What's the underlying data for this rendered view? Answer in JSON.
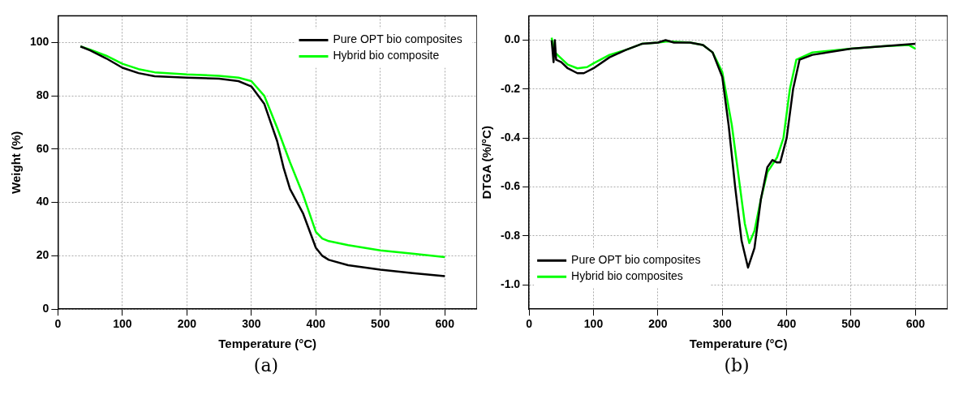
{
  "chart_data": [
    {
      "type": "line",
      "xlabel": "Temperature (°C)",
      "ylabel": "Weight (%)",
      "xlim": [
        0,
        650
      ],
      "ylim": [
        0,
        110
      ],
      "xticks": [
        0,
        100,
        200,
        300,
        400,
        500,
        600
      ],
      "yticks": [
        0,
        20,
        40,
        60,
        80,
        100
      ],
      "grid": true,
      "legend": "top right",
      "annotations": [
        "(a)"
      ],
      "series": [
        {
          "name": "Pure OPT bio composites",
          "color": "#000000",
          "x": [
            35,
            50,
            75,
            100,
            125,
            150,
            200,
            250,
            280,
            300,
            320,
            340,
            350,
            360,
            380,
            400,
            410,
            420,
            450,
            500,
            550,
            600
          ],
          "values": [
            98.5,
            97,
            94,
            90.5,
            88.5,
            87.3,
            86.8,
            86.4,
            85.5,
            83.5,
            77,
            63,
            53,
            45,
            36,
            23,
            20,
            18.5,
            16.5,
            14.8,
            13.5,
            12.4
          ]
        },
        {
          "name": "Hybrid bio composite",
          "color": "#00ff00",
          "x": [
            35,
            50,
            75,
            100,
            125,
            150,
            200,
            250,
            280,
            300,
            320,
            340,
            360,
            380,
            400,
            410,
            420,
            450,
            500,
            550,
            600
          ],
          "values": [
            98.5,
            97.3,
            95,
            92,
            90,
            88.8,
            88,
            87.5,
            86.8,
            85.5,
            80,
            68,
            55,
            43,
            29,
            26.5,
            25.5,
            24,
            22,
            20.8,
            19.5
          ]
        }
      ]
    },
    {
      "type": "line",
      "xlabel": "Temperature (°C)",
      "ylabel": "DTGA (%/°C)",
      "xlim": [
        0,
        650
      ],
      "ylim": [
        -1.1,
        0.1
      ],
      "xticks": [
        0,
        100,
        200,
        300,
        400,
        500,
        600
      ],
      "yticks": [
        {
          "value": -1,
          "label": "-1.0"
        },
        {
          "value": -0.8,
          "label": "-0.8"
        },
        {
          "value": -0.6,
          "label": "-0.6"
        },
        {
          "value": -0.4,
          "label": "-0.4"
        },
        {
          "value": -0.2,
          "label": "-0.2"
        },
        {
          "value": 0,
          "label": "0.0"
        }
      ],
      "grid": true,
      "legend": "bottom left",
      "annotations": [
        "(b)"
      ],
      "series": [
        {
          "name": "Pure OPT bio composites",
          "color": "#000000",
          "x": [
            35,
            38,
            40,
            42,
            50,
            60,
            75,
            85,
            100,
            125,
            150,
            175,
            200,
            212,
            225,
            250,
            270,
            285,
            300,
            310,
            320,
            330,
            340,
            350,
            360,
            370,
            378,
            385,
            390,
            400,
            410,
            420,
            440,
            500,
            550,
            600
          ],
          "values": [
            0,
            -0.09,
            0,
            -0.08,
            -0.09,
            -0.115,
            -0.135,
            -0.135,
            -0.115,
            -0.07,
            -0.04,
            -0.015,
            -0.01,
            0,
            -0.01,
            -0.01,
            -0.02,
            -0.05,
            -0.15,
            -0.35,
            -0.6,
            -0.82,
            -0.93,
            -0.85,
            -0.65,
            -0.52,
            -0.49,
            -0.5,
            -0.5,
            -0.4,
            -0.2,
            -0.08,
            -0.06,
            -0.035,
            -0.025,
            -0.015
          ]
        },
        {
          "name": "Hybrid bio composites",
          "color": "#00ff00",
          "x": [
            35,
            40,
            50,
            60,
            75,
            90,
            100,
            125,
            150,
            175,
            200,
            215,
            250,
            270,
            285,
            300,
            315,
            325,
            335,
            342,
            350,
            360,
            370,
            385,
            395,
            405,
            415,
            440,
            500,
            550,
            590,
            600
          ],
          "values": [
            0.01,
            -0.05,
            -0.075,
            -0.1,
            -0.115,
            -0.11,
            -0.095,
            -0.06,
            -0.04,
            -0.015,
            -0.01,
            -0.005,
            -0.01,
            -0.02,
            -0.05,
            -0.13,
            -0.35,
            -0.55,
            -0.75,
            -0.83,
            -0.78,
            -0.65,
            -0.54,
            -0.48,
            -0.4,
            -0.2,
            -0.08,
            -0.05,
            -0.035,
            -0.025,
            -0.02,
            -0.035
          ]
        }
      ]
    }
  ]
}
